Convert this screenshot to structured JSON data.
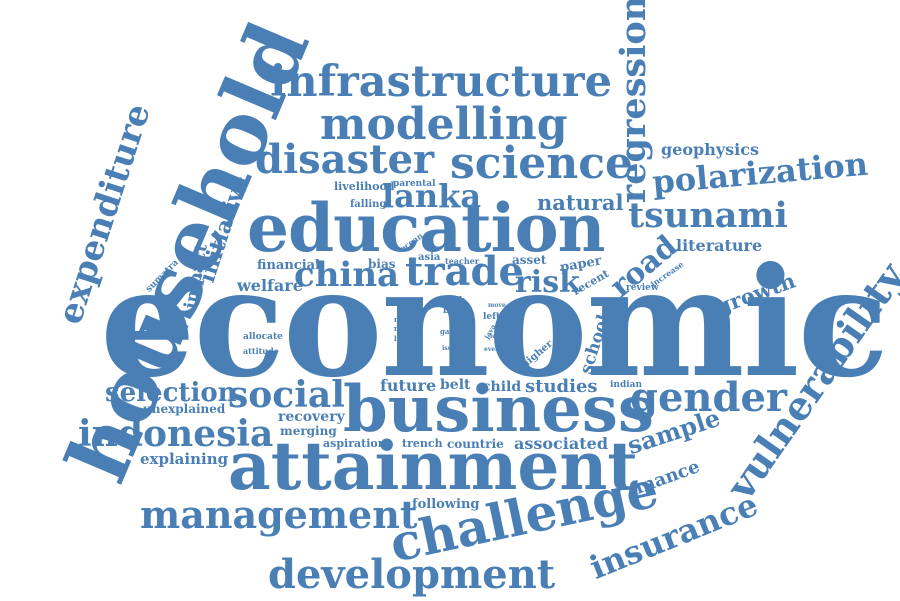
{
  "accent_color": "#4a7fb5",
  "words": {
    "economic": "economic",
    "household": "household",
    "education": "education",
    "business": "business",
    "attainment": "attainment",
    "challenge": "challenge",
    "infrastructure": "infrastructure",
    "modelling": "modelling",
    "disaster": "disaster",
    "science": "science",
    "regression": "regression",
    "expenditure": "expenditure",
    "vulnerability": "vulnerability",
    "tsunami": "tsunami",
    "polarization": "polarization",
    "development": "development",
    "management": "management",
    "indonesia": "indonesia",
    "gender": "gender",
    "social": "social",
    "lanka": "lanka",
    "china": "china",
    "trade": "trade",
    "risk": "risk",
    "road": "road",
    "insurance": "insurance",
    "selection": "selection",
    "sample": "sample",
    "growth": "growth",
    "initiative": "initiative",
    "natural": "natural",
    "literature": "literature",
    "geophysics": "geophysics",
    "studies": "studies",
    "finance": "finance",
    "associated": "associated",
    "impact": "impact",
    "welfare": "welfare",
    "financial": "financial",
    "future": "future",
    "child": "child",
    "school": "school",
    "explaining": "explaining",
    "unexplained": "unexplained",
    "recovery": "recovery",
    "merging": "merging",
    "following": "following",
    "belt": "belt",
    "countrie": "countrie",
    "trench": "trench",
    "aspiration": "aspiration",
    "livelihood": "livelihood",
    "falling": "falling",
    "parental": "parental",
    "paper": "paper",
    "asset": "asset",
    "recent": "recent",
    "review": "review",
    "increase": "increase",
    "bias": "bias",
    "asia": "asia",
    "teacher": "teacher",
    "ocean": "ocean",
    "sumatra": "sumatra",
    "allocate": "allocate",
    "attitude": "attitude",
    "return": "return",
    "range": "range",
    "losses": "losses",
    "silk": "silk",
    "boy": "boy",
    "left": "left",
    "gap": "gap",
    "loss": "loss",
    "java": "java",
    "level": "level",
    "move": "move",
    "event": "event",
    "issue": "issue",
    "higher": "higher",
    "indian": "indian"
  }
}
